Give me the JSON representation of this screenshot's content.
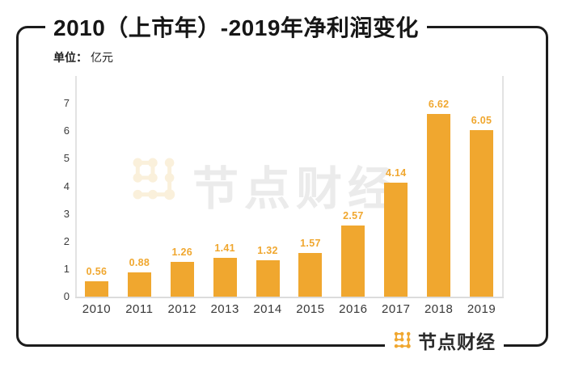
{
  "page": {
    "background": "#ffffff"
  },
  "frame": {
    "border_color": "#1c1c1c"
  },
  "header": {
    "title": "2010（上市年）-2019年净利润变化",
    "unit_label": "单位：",
    "unit_value": "亿元"
  },
  "watermark": {
    "text": "节点财经",
    "logo": "jiedian-dots-logo",
    "text_color": "#EBEBEB",
    "logo_color": "#FAF0DB"
  },
  "footer": {
    "brand": "节点财经",
    "logo": "jiedian-dots-logo",
    "text_color": "#2A2A2A",
    "logo_color": "#F0A72F"
  },
  "chart_data": {
    "type": "bar",
    "title": "2010（上市年）-2019年净利润变化",
    "unit": "亿元",
    "categories": [
      "2010",
      "2011",
      "2012",
      "2013",
      "2014",
      "2015",
      "2016",
      "2017",
      "2018",
      "2019"
    ],
    "values": [
      0.56,
      0.88,
      1.26,
      1.41,
      1.32,
      1.57,
      2.57,
      4.14,
      6.62,
      6.05
    ],
    "value_labels": [
      "0.56",
      "0.88",
      "1.26",
      "1.41",
      "1.32",
      "1.57",
      "2.57",
      "4.14",
      "6.62",
      "6.05"
    ],
    "yticks": [
      0,
      1,
      2,
      3,
      4,
      5,
      6,
      7
    ],
    "ylim": [
      0,
      8
    ],
    "xlabel": "",
    "ylabel": "",
    "grid": false,
    "legend": false,
    "bar_color": "#F0A72F",
    "label_color": "#F0A72F"
  }
}
